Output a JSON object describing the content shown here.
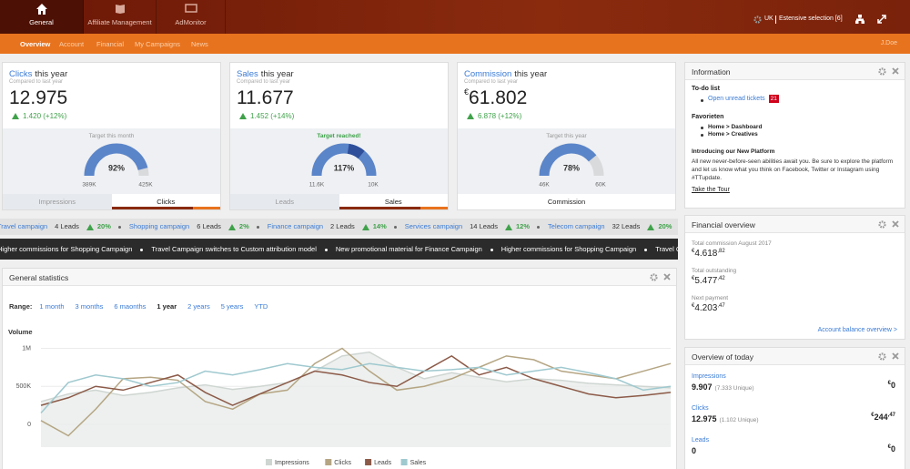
{
  "topbar": {
    "tabs": [
      "General",
      "Affiliate Management",
      "AdMonitor"
    ],
    "active_tab": 0,
    "region": "UK",
    "selection": "Estensive selection [6]"
  },
  "subnav": {
    "items": [
      "Overview",
      "Account",
      "Financial",
      "My Campaigns",
      "News"
    ],
    "active": 0,
    "user": "J.Doe"
  },
  "kpis": [
    {
      "name": "Clicks",
      "suffix": "this year",
      "compare": "Compared to last year",
      "value": "12.975",
      "change": "1.420 (+12%)",
      "target": "Target this month",
      "gauge": {
        "value": 92,
        "label": "92%"
      },
      "min": "389K",
      "max": "425K",
      "tabs": [
        "Impressions",
        "Clicks"
      ],
      "active_tab": 1
    },
    {
      "name": "Sales",
      "suffix": "this year",
      "compare": "Compared to last year",
      "value": "11.677",
      "change": "1.452 (+14%)",
      "target": "Target reached!",
      "reached": true,
      "gauge": {
        "value": 117,
        "label": "117%"
      },
      "min": "11.6K",
      "max": "10K",
      "tabs": [
        "Leads",
        "Sales"
      ],
      "active_tab": 1
    },
    {
      "name": "Commission",
      "suffix": "this year",
      "compare": "Compared to last year",
      "currency": "€",
      "value": "61.802",
      "change": "6.878 (+12%)",
      "target": "Target this year",
      "gauge": {
        "value": 78,
        "label": "78%"
      },
      "min": "46K",
      "max": "60K",
      "tabs": [
        "Commission"
      ],
      "active_tab": 0
    }
  ],
  "ticker": [
    {
      "name": "Travel campaign",
      "leads": "4 Leads",
      "change": "20%"
    },
    {
      "name": "Shopping campaign",
      "leads": "6 Leads",
      "change": "2%"
    },
    {
      "name": "Finance campaign",
      "leads": "2 Leads",
      "change": "14%"
    },
    {
      "name": "Services campaign",
      "leads": "14 Leads",
      "change": "12%"
    },
    {
      "name": "Telecom campaign",
      "leads": "32 Leads",
      "change": "20%"
    }
  ],
  "news": [
    "Higher commissions for Shopping Campaign",
    "Travel Campaign switches to Custom attribution model",
    "New promotional material for Finance Campaign",
    "Higher commissions for Shopping Campaign",
    "Travel Campaign switches to Custom attribution model"
  ],
  "stats": {
    "title": "General statistics",
    "range_label": "Range:",
    "ranges": [
      "1 month",
      "3 months",
      "6 maonths",
      "1 year",
      "2 years",
      "5 years",
      "YTD"
    ],
    "active_range": 3,
    "chart": {
      "type": "line",
      "ylabel": "Volume",
      "ylim": [
        -300000,
        1150000
      ],
      "yticks": [
        0,
        {
          "value": 500000,
          "label": "500K"
        },
        {
          "value": 1000000,
          "label": "1M"
        }
      ],
      "grid": true,
      "series": [
        {
          "name": "Impressions",
          "color": "#cfd6d2",
          "area": true,
          "values": [
            300000,
            400000,
            450000,
            380000,
            420000,
            480000,
            520000,
            460000,
            500000,
            550000,
            700000,
            900000,
            950000,
            750000,
            600000,
            680000,
            620000,
            560000,
            600000,
            580000,
            540000,
            520000,
            500000,
            480000
          ]
        },
        {
          "name": "Clicks",
          "color": "#b5a583",
          "values": [
            50000,
            -150000,
            200000,
            600000,
            620000,
            580000,
            300000,
            200000,
            400000,
            450000,
            800000,
            1000000,
            700000,
            450000,
            500000,
            600000,
            750000,
            900000,
            850000,
            700000,
            650000,
            600000,
            700000,
            800000
          ]
        },
        {
          "name": "Leads",
          "color": "#8c5a48",
          "values": [
            250000,
            350000,
            500000,
            450000,
            550000,
            650000,
            420000,
            250000,
            400000,
            550000,
            700000,
            650000,
            550000,
            500000,
            700000,
            900000,
            650000,
            750000,
            600000,
            500000,
            400000,
            350000,
            380000,
            420000
          ]
        },
        {
          "name": "Sales",
          "color": "#9fc9cf",
          "values": [
            150000,
            550000,
            650000,
            600000,
            500000,
            550000,
            700000,
            650000,
            720000,
            800000,
            750000,
            720000,
            800000,
            750000,
            700000,
            720000,
            750000,
            650000,
            700000,
            750000,
            680000,
            600000,
            450000,
            500000
          ]
        }
      ]
    }
  },
  "information": {
    "title": "Information",
    "todo_title": "To-do list",
    "todo": [
      {
        "text": "Open unread tickets",
        "badge": "21"
      }
    ],
    "favorites_title": "Favorieten",
    "favorites": [
      "Home > Dashboard",
      "Home > Creatives"
    ],
    "news_title": "Introducing our New Platform",
    "news_text": "All new never-before-seen abilities await you. Be sure to explore the platform and let us know what you think on Facebook, Twitter or Instagram using #TTupdate.",
    "cta": "Take the Tour"
  },
  "financial": {
    "title": "Financial overview",
    "items": [
      {
        "label": "Total commission August 2017",
        "currency": "€",
        "amount": "4.618",
        "decimals": ",82"
      },
      {
        "label": "Total outstanding",
        "currency": "€",
        "amount": "5.477",
        "decimals": ",42"
      },
      {
        "label": "Next payment",
        "currency": "€",
        "amount": "4.203",
        "decimals": ",47"
      }
    ],
    "link": "Account balance overview >"
  },
  "today": {
    "title": "Overview of today",
    "items": [
      {
        "label": "Impressions",
        "value": "9.907",
        "unique": "(7.333 Unique)",
        "currency": "€",
        "amount": "0"
      },
      {
        "label": "Clicks",
        "value": "12.975",
        "unique": "(1.102 Unique)",
        "currency": "€",
        "amount": "244",
        "decimals": ",47"
      },
      {
        "label": "Leads",
        "value": "0",
        "currency": "€",
        "amount": "0"
      }
    ]
  }
}
